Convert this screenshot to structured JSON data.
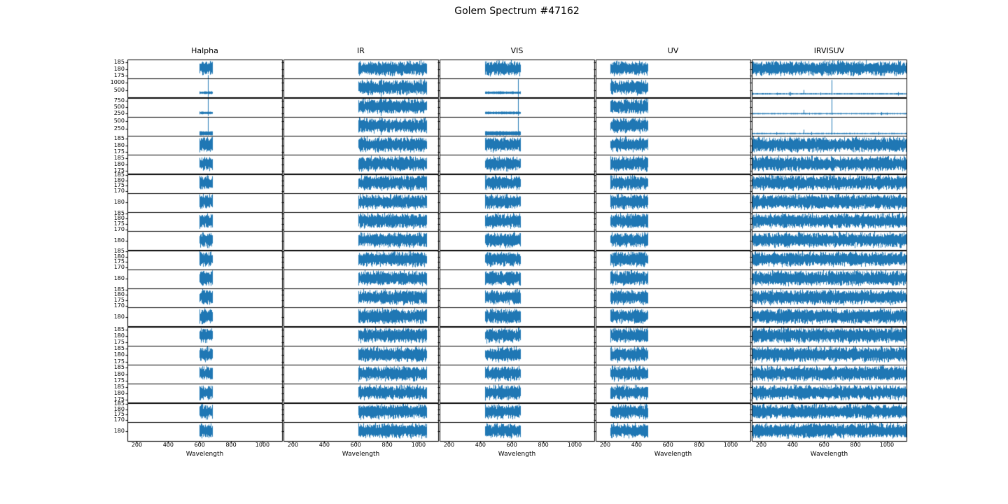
{
  "title": "Golem Spectrum #47162",
  "chart_data": {
    "type": "line",
    "title": "Golem Spectrum #47162",
    "xlabel": "Wavelength",
    "xlim": [
      140,
      1125
    ],
    "x_ticks": [
      200,
      400,
      600,
      800,
      1000
    ],
    "line_color": "#1f77b4",
    "axis_color": "#000000",
    "background": "#ffffff",
    "grid": false,
    "legend": null,
    "columns": [
      {
        "title": "Halpha",
        "band_nm": [
          600,
          680
        ],
        "emission_line_nm": 652,
        "spike_row_style": "compressed"
      },
      {
        "title": "IR",
        "band_nm": [
          618,
          1050
        ],
        "emission_line_nm": 760,
        "spike_row_style": "band"
      },
      {
        "title": "VIS",
        "band_nm": [
          430,
          652
        ],
        "emission_line_nm": 640,
        "spike_row_style": "compressed"
      },
      {
        "title": "UV",
        "band_nm": [
          234,
          470
        ],
        "emission_line_nm": null,
        "spike_row_style": "band"
      },
      {
        "title": "IRVISUV",
        "band_nm": [
          140,
          1125
        ],
        "emission_line_nm": 648,
        "secondary_line_nm": 470,
        "spike_row_style": "flatline"
      }
    ],
    "rows": [
      {
        "y_ticks": [
          185,
          180,
          175
        ],
        "style": "noise"
      },
      {
        "y_ticks": [
          1000,
          500
        ],
        "style": "spike"
      },
      {
        "y_ticks": [
          750,
          500,
          250
        ],
        "style": "spike"
      },
      {
        "y_ticks": [
          500,
          250
        ],
        "style": "spike"
      },
      {
        "y_ticks": [
          185,
          180,
          175
        ],
        "style": "noise"
      },
      {
        "y_ticks": [
          185,
          180,
          175
        ],
        "style": "noise"
      },
      {
        "y_ticks": [
          185,
          180,
          175,
          170
        ],
        "style": "noise"
      },
      {
        "y_ticks": [
          180
        ],
        "style": "noise"
      },
      {
        "y_ticks": [
          185,
          180,
          175,
          170
        ],
        "style": "noise"
      },
      {
        "y_ticks": [
          180
        ],
        "style": "noise"
      },
      {
        "y_ticks": [
          185,
          180,
          175,
          170
        ],
        "style": "noise"
      },
      {
        "y_ticks": [
          180
        ],
        "style": "noise"
      },
      {
        "y_ticks": [
          185,
          180,
          175,
          170
        ],
        "style": "noise"
      },
      {
        "y_ticks": [
          180
        ],
        "style": "noise"
      },
      {
        "y_ticks": [
          185,
          180,
          175
        ],
        "style": "noise"
      },
      {
        "y_ticks": [
          185,
          180,
          175
        ],
        "style": "noise"
      },
      {
        "y_ticks": [
          185,
          180,
          175
        ],
        "style": "noise"
      },
      {
        "y_ticks": [
          185,
          180,
          175
        ],
        "style": "noise"
      },
      {
        "y_ticks": [
          185,
          180,
          175,
          170
        ],
        "style": "noise"
      },
      {
        "y_ticks": [
          180
        ],
        "style": "noise"
      }
    ],
    "noise_level_range": [
      172,
      188
    ]
  }
}
